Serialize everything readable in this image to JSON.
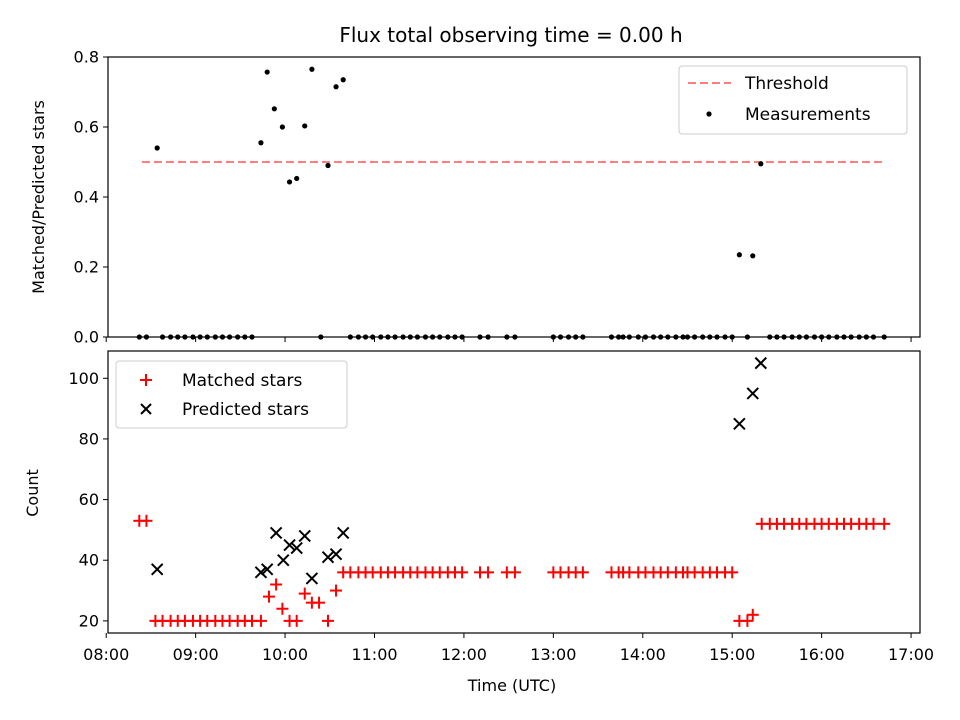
{
  "chart_data": [
    {
      "type": "scatter",
      "title": "Flux total observing time = 0.00 h",
      "xlabel": "",
      "ylabel": "Matched/Predicted stars",
      "xlim": [
        8.02,
        17.1
      ],
      "ylim": [
        0,
        0.8
      ],
      "yticks": [
        "0.0",
        "0.2",
        "0.4",
        "0.6",
        "0.8"
      ],
      "legend_position": "top-right",
      "grid": false,
      "threshold": {
        "name": "Threshold",
        "x": [
          8.4,
          16.7
        ],
        "y": 0.5,
        "color": "#ff7f7f",
        "style": "dashed"
      },
      "series": [
        {
          "name": "Measurements",
          "color": "#000000",
          "marker": "dot",
          "x": [
            8.57,
            9.73,
            9.8,
            9.88,
            9.97,
            10.05,
            10.13,
            10.22,
            10.3,
            10.48,
            10.57,
            10.65,
            15.08,
            15.23,
            15.32,
            8.37,
            8.45,
            8.63,
            8.72,
            8.8,
            8.88,
            8.97,
            9.05,
            9.13,
            9.22,
            9.3,
            9.38,
            9.47,
            9.55,
            9.63,
            10.4,
            10.73,
            10.82,
            10.9,
            10.98,
            11.07,
            11.15,
            11.23,
            11.32,
            11.4,
            11.48,
            11.57,
            11.65,
            11.73,
            11.82,
            11.9,
            11.98,
            12.18,
            12.27,
            12.48,
            12.57,
            13.0,
            13.08,
            13.17,
            13.25,
            13.33,
            13.65,
            13.73,
            13.78,
            13.85,
            13.95,
            14.03,
            14.12,
            14.2,
            14.28,
            14.37,
            14.45,
            14.5,
            14.58,
            14.67,
            14.75,
            14.83,
            14.92,
            15.0,
            15.17,
            15.42,
            15.5,
            15.58,
            15.67,
            15.75,
            15.83,
            15.92,
            16.0,
            16.08,
            16.17,
            16.25,
            16.33,
            16.42,
            16.5,
            16.58,
            16.7
          ],
          "y": [
            0.54,
            0.555,
            0.757,
            0.652,
            0.6,
            0.443,
            0.453,
            0.603,
            0.765,
            0.49,
            0.715,
            0.735,
            0.235,
            0.232,
            0.495,
            0,
            0,
            0,
            0,
            0,
            0,
            0,
            0,
            0,
            0,
            0,
            0,
            0,
            0,
            0,
            0,
            0,
            0,
            0,
            0,
            0,
            0,
            0,
            0,
            0,
            0,
            0,
            0,
            0,
            0,
            0,
            0,
            0,
            0,
            0,
            0,
            0,
            0,
            0,
            0,
            0,
            0,
            0,
            0,
            0,
            0,
            0,
            0,
            0,
            0,
            0,
            0,
            0,
            0,
            0,
            0,
            0,
            0,
            0,
            0,
            0,
            0,
            0,
            0,
            0,
            0,
            0,
            0,
            0,
            0,
            0,
            0,
            0,
            0,
            0,
            0
          ]
        }
      ]
    },
    {
      "type": "scatter",
      "title": "",
      "xlabel": "Time (UTC)",
      "ylabel": "Count",
      "xlim": [
        8.02,
        17.1
      ],
      "ylim": [
        16,
        109
      ],
      "xticks": [
        "08:00",
        "09:00",
        "10:00",
        "11:00",
        "12:00",
        "13:00",
        "14:00",
        "15:00",
        "16:00",
        "17:00"
      ],
      "yticks": [
        "20",
        "40",
        "60",
        "80",
        "100"
      ],
      "legend_position": "top-left",
      "grid": false,
      "series": [
        {
          "name": "Matched stars",
          "color": "#ff0000",
          "marker": "plus",
          "x": [
            8.37,
            8.45,
            8.55,
            8.63,
            8.72,
            8.8,
            8.88,
            8.97,
            9.05,
            9.13,
            9.22,
            9.3,
            9.38,
            9.47,
            9.55,
            9.63,
            9.73,
            9.82,
            9.9,
            9.97,
            10.05,
            10.13,
            10.22,
            10.3,
            10.38,
            10.48,
            10.57,
            10.65,
            10.73,
            10.82,
            10.9,
            10.98,
            11.07,
            11.15,
            11.23,
            11.32,
            11.4,
            11.48,
            11.57,
            11.65,
            11.73,
            11.82,
            11.9,
            11.98,
            12.18,
            12.27,
            12.48,
            12.57,
            13.0,
            13.08,
            13.17,
            13.25,
            13.33,
            13.65,
            13.73,
            13.78,
            13.85,
            13.95,
            14.03,
            14.12,
            14.2,
            14.28,
            14.37,
            14.45,
            14.5,
            14.58,
            14.67,
            14.75,
            14.83,
            14.92,
            15.0,
            15.08,
            15.17,
            15.23,
            15.33,
            15.42,
            15.5,
            15.58,
            15.67,
            15.75,
            15.83,
            15.92,
            16.0,
            16.08,
            16.17,
            16.25,
            16.33,
            16.42,
            16.5,
            16.58,
            16.7
          ],
          "y": [
            53,
            53,
            20,
            20,
            20,
            20,
            20,
            20,
            20,
            20,
            20,
            20,
            20,
            20,
            20,
            20,
            20,
            28,
            32,
            24,
            20,
            20,
            29,
            26,
            26,
            20,
            30,
            36,
            36,
            36,
            36,
            36,
            36,
            36,
            36,
            36,
            36,
            36,
            36,
            36,
            36,
            36,
            36,
            36,
            36,
            36,
            36,
            36,
            36,
            36,
            36,
            36,
            36,
            36,
            36,
            36,
            36,
            36,
            36,
            36,
            36,
            36,
            36,
            36,
            36,
            36,
            36,
            36,
            36,
            36,
            36,
            20,
            20,
            22,
            52,
            52,
            52,
            52,
            52,
            52,
            52,
            52,
            52,
            52,
            52,
            52,
            52,
            52,
            52,
            52,
            52
          ]
        },
        {
          "name": "Predicted stars",
          "color": "#000000",
          "marker": "x",
          "x": [
            8.57,
            9.73,
            9.8,
            9.9,
            9.98,
            10.05,
            10.13,
            10.22,
            10.3,
            10.48,
            10.57,
            10.65,
            15.08,
            15.23,
            15.32
          ],
          "y": [
            37,
            36,
            37,
            49,
            40,
            45,
            44,
            48,
            34,
            41,
            42,
            49,
            85,
            95,
            105
          ]
        }
      ]
    }
  ]
}
